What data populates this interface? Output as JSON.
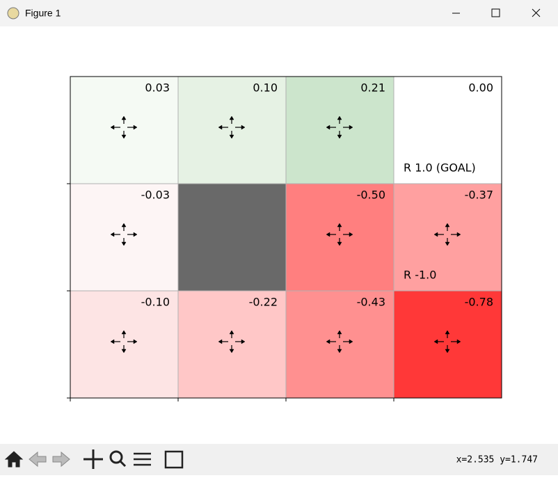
{
  "window": {
    "title": "Figure 1"
  },
  "grid": {
    "rows": [
      [
        {
          "value": "0.03",
          "color": "#f5faf4",
          "arrows": true
        },
        {
          "value": "0.10",
          "color": "#e6f2e4",
          "arrows": true
        },
        {
          "value": "0.21",
          "color": "#cce5cc",
          "arrows": true
        },
        {
          "value": "0.00",
          "color": "#ffffff",
          "arrows": false,
          "reward": "R 1.0 (GOAL)"
        }
      ],
      [
        {
          "value": "-0.03",
          "color": "#fdf5f5",
          "arrows": true
        },
        {
          "wall": true,
          "color": "#696969"
        },
        {
          "value": "-0.50",
          "color": "#ff7f7f",
          "arrows": true
        },
        {
          "value": "-0.37",
          "color": "#ffa0a0",
          "arrows": true,
          "reward": "R -1.0"
        }
      ],
      [
        {
          "value": "-0.10",
          "color": "#fde4e4",
          "arrows": true
        },
        {
          "value": "-0.22",
          "color": "#ffc7c7",
          "arrows": true
        },
        {
          "value": "-0.43",
          "color": "#ff9090",
          "arrows": true
        },
        {
          "value": "-0.78",
          "color": "#ff3838",
          "arrows": true
        }
      ]
    ]
  },
  "status": "x=2.535 y=1.747"
}
